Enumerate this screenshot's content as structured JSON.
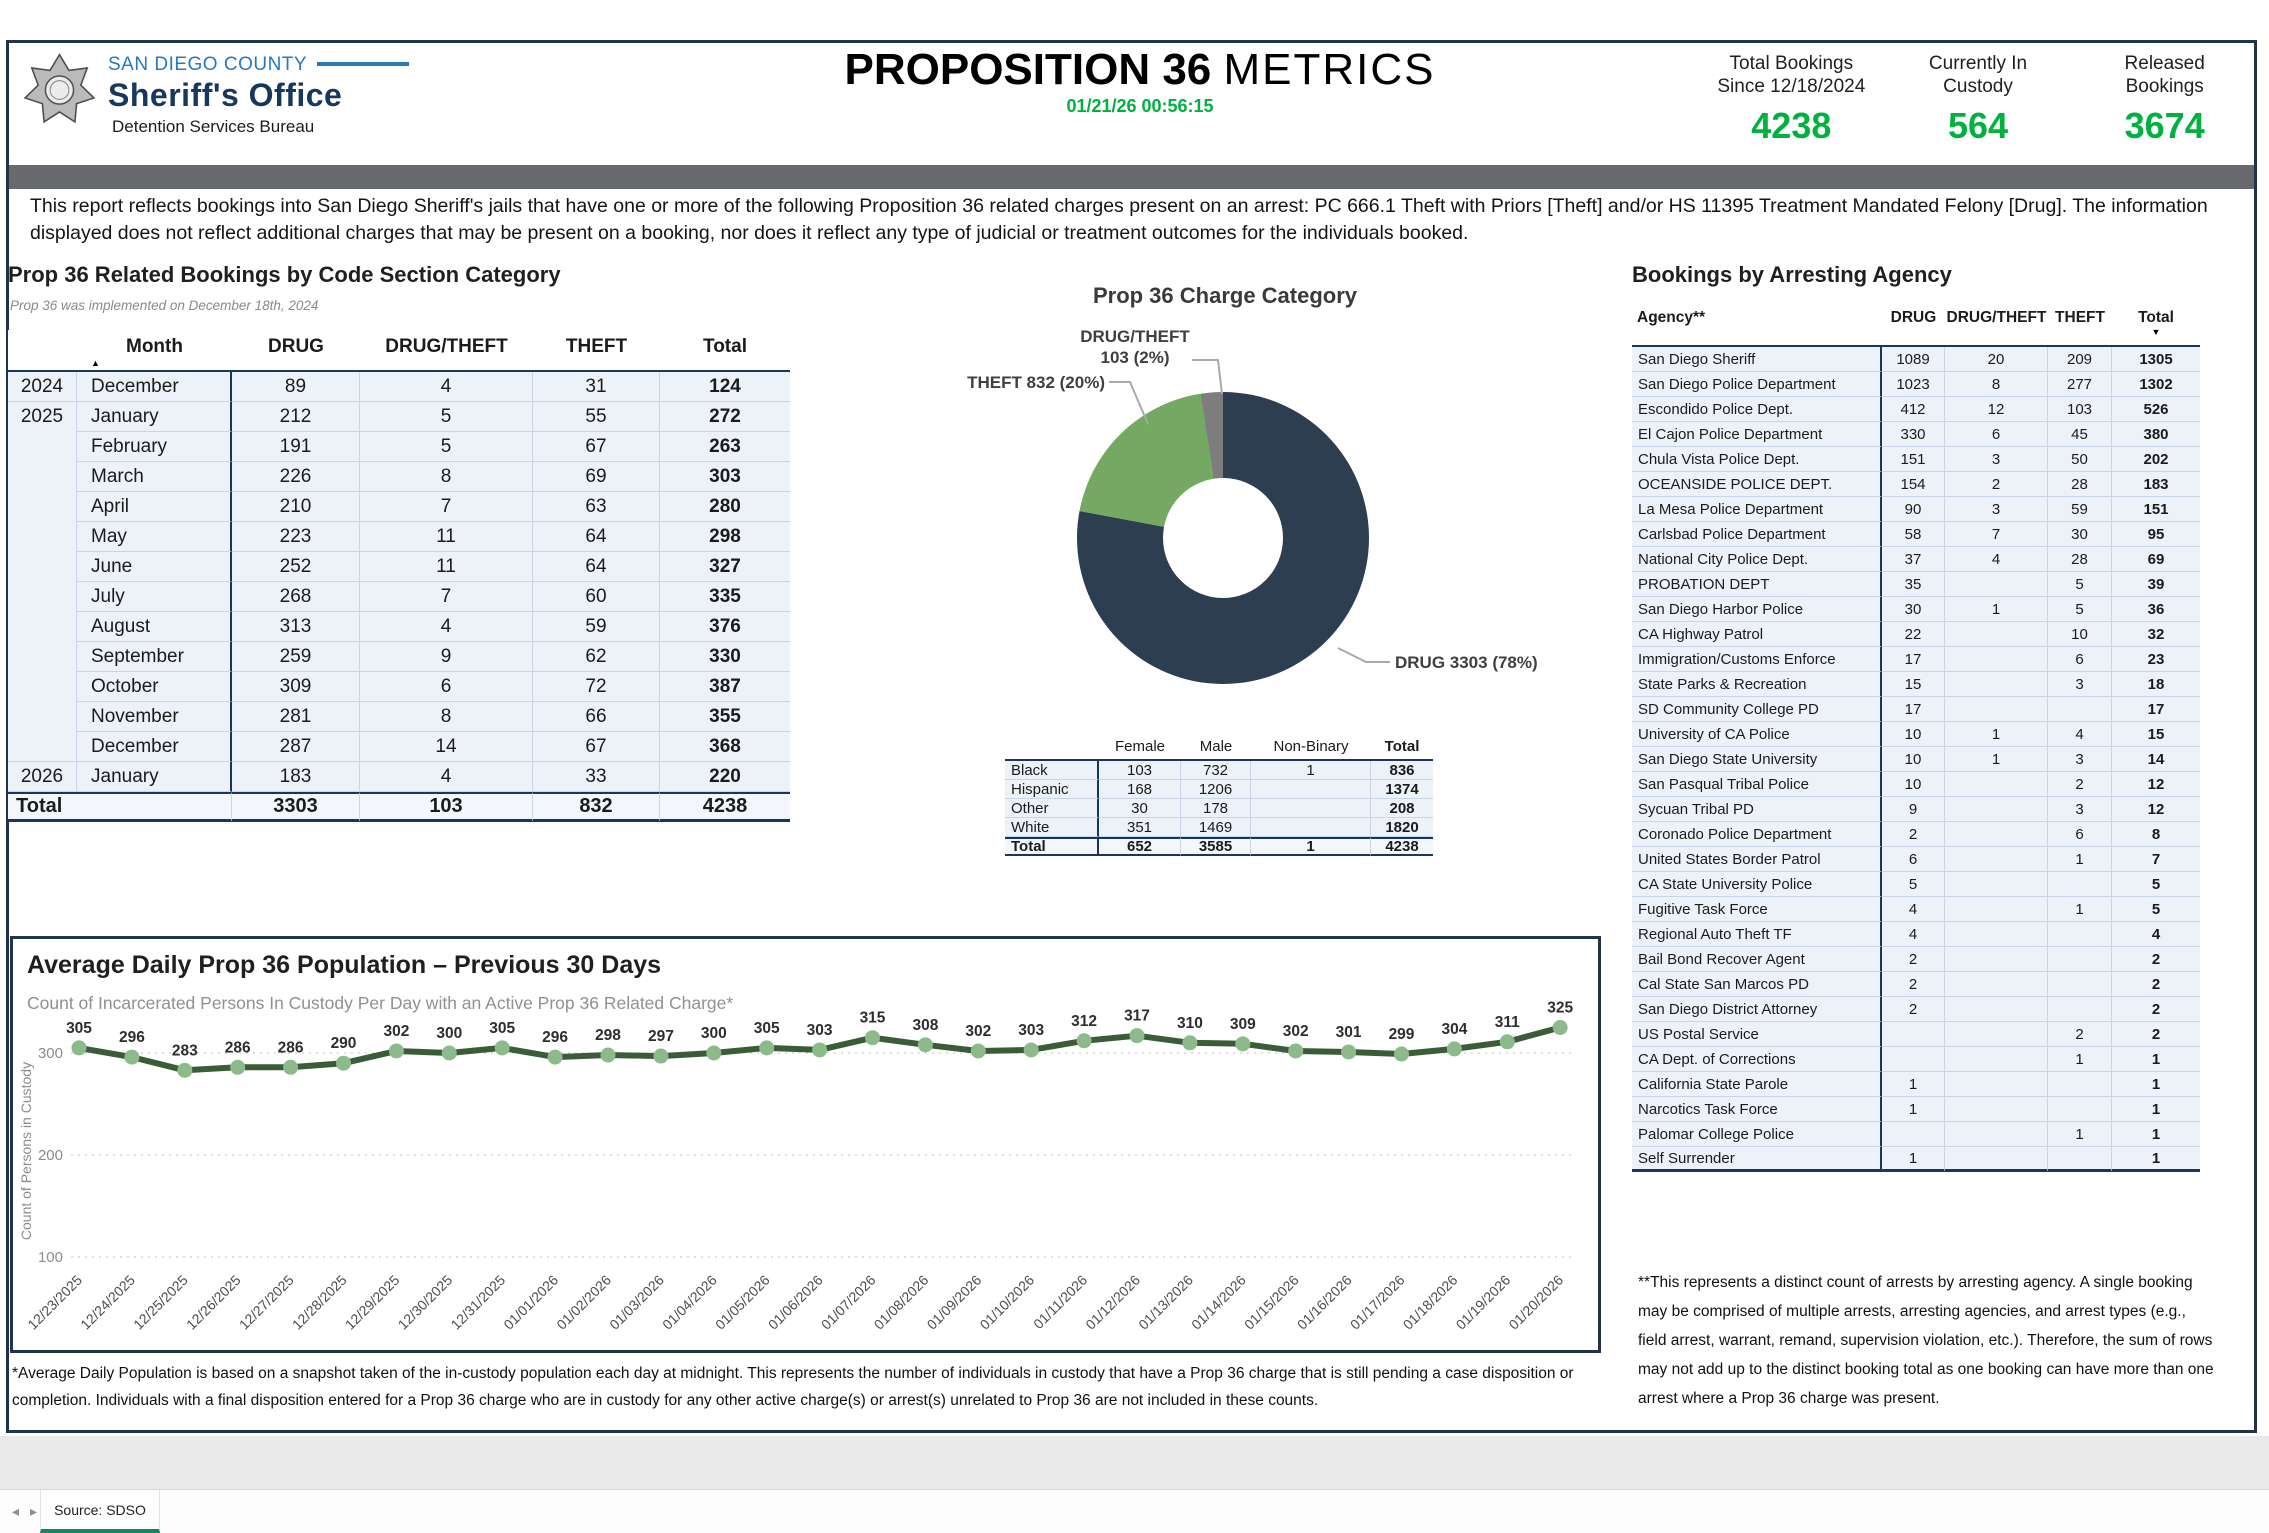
{
  "header": {
    "county": "SAN DIEGO COUNTY",
    "office": "Sheriff's Office",
    "bureau": "Detention Services Bureau",
    "title_bold": "PROPOSITION 36",
    "title_rest": "METRICS",
    "datetime": "01/21/26 00:56:15",
    "accent_green": "#00b140",
    "stats": [
      {
        "line1": "Total Bookings",
        "line2": "Since 12/18/2024",
        "value": "4238"
      },
      {
        "line1": "Currently In",
        "line2": "Custody",
        "value": "564"
      },
      {
        "line1": "Released",
        "line2": "Bookings",
        "value": "3674"
      }
    ]
  },
  "banner_text": "This report reflects bookings into San Diego Sheriff's jails that have one or more of the following Proposition 36 related charges present on an arrest: PC 666.1 Theft with Priors [Theft] and/or HS 11395 Treatment Mandated Felony [Drug]. The information displayed does not reflect additional charges that may be present on a booking, nor does it reflect any type of judicial or treatment outcomes for the individuals booked.",
  "sort_icons": {
    "asc": "▲",
    "desc": "▼"
  },
  "monthly_table": {
    "title": "Prop 36 Related Bookings by Code Section Category",
    "subtitle": "Prop 36 was implemented on December 18th, 2024",
    "columns": [
      "",
      "Month",
      "DRUG",
      "DRUG/THEFT",
      "THEFT",
      "Total"
    ],
    "rows": [
      [
        "2024",
        "December",
        "89",
        "4",
        "31",
        "124"
      ],
      [
        "2025",
        "January",
        "212",
        "5",
        "55",
        "272"
      ],
      [
        "",
        "February",
        "191",
        "5",
        "67",
        "263"
      ],
      [
        "",
        "March",
        "226",
        "8",
        "69",
        "303"
      ],
      [
        "",
        "April",
        "210",
        "7",
        "63",
        "280"
      ],
      [
        "",
        "May",
        "223",
        "11",
        "64",
        "298"
      ],
      [
        "",
        "June",
        "252",
        "11",
        "64",
        "327"
      ],
      [
        "",
        "July",
        "268",
        "7",
        "60",
        "335"
      ],
      [
        "",
        "August",
        "313",
        "4",
        "59",
        "376"
      ],
      [
        "",
        "September",
        "259",
        "9",
        "62",
        "330"
      ],
      [
        "",
        "October",
        "309",
        "6",
        "72",
        "387"
      ],
      [
        "",
        "November",
        "281",
        "8",
        "66",
        "355"
      ],
      [
        "",
        "December",
        "287",
        "14",
        "67",
        "368"
      ],
      [
        "2026",
        "January",
        "183",
        "4",
        "33",
        "220"
      ]
    ],
    "total_row": [
      "Total",
      "3303",
      "103",
      "832",
      "4238"
    ]
  },
  "demographics": {
    "columns": [
      "",
      "Female",
      "Male",
      "Non-Binary",
      "Total"
    ],
    "rows": [
      [
        "Black",
        "103",
        "732",
        "1",
        "836"
      ],
      [
        "Hispanic",
        "168",
        "1206",
        "",
        "1374"
      ],
      [
        "Other",
        "30",
        "178",
        "",
        "208"
      ],
      [
        "White",
        "351",
        "1469",
        "",
        "1820"
      ]
    ],
    "total_row": [
      "Total",
      "652",
      "3585",
      "1",
      "4238"
    ]
  },
  "agency_table": {
    "title": "Bookings by Arresting Agency",
    "columns": [
      "Agency**",
      "DRUG",
      "DRUG/THEFT",
      "THEFT",
      "Total"
    ],
    "rows": [
      [
        "San Diego Sheriff",
        "1089",
        "20",
        "209",
        "1305"
      ],
      [
        "San Diego Police Department",
        "1023",
        "8",
        "277",
        "1302"
      ],
      [
        "Escondido Police Dept.",
        "412",
        "12",
        "103",
        "526"
      ],
      [
        "El Cajon Police Department",
        "330",
        "6",
        "45",
        "380"
      ],
      [
        "Chula Vista Police Dept.",
        "151",
        "3",
        "50",
        "202"
      ],
      [
        "OCEANSIDE POLICE DEPT.",
        "154",
        "2",
        "28",
        "183"
      ],
      [
        "La Mesa Police Department",
        "90",
        "3",
        "59",
        "151"
      ],
      [
        "Carlsbad Police Department",
        "58",
        "7",
        "30",
        "95"
      ],
      [
        "National City Police Dept.",
        "37",
        "4",
        "28",
        "69"
      ],
      [
        "PROBATION DEPT",
        "35",
        "",
        "5",
        "39"
      ],
      [
        "San Diego Harbor Police",
        "30",
        "1",
        "5",
        "36"
      ],
      [
        "CA Highway Patrol",
        "22",
        "",
        "10",
        "32"
      ],
      [
        "Immigration/Customs Enforce",
        "17",
        "",
        "6",
        "23"
      ],
      [
        "State Parks & Recreation",
        "15",
        "",
        "3",
        "18"
      ],
      [
        "SD Community College PD",
        "17",
        "",
        "",
        "17"
      ],
      [
        "University of CA Police",
        "10",
        "1",
        "4",
        "15"
      ],
      [
        "San Diego State University",
        "10",
        "1",
        "3",
        "14"
      ],
      [
        "San Pasqual Tribal Police",
        "10",
        "",
        "2",
        "12"
      ],
      [
        "Sycuan Tribal PD",
        "9",
        "",
        "3",
        "12"
      ],
      [
        "Coronado Police Department",
        "2",
        "",
        "6",
        "8"
      ],
      [
        "United States Border Patrol",
        "6",
        "",
        "1",
        "7"
      ],
      [
        "CA State University Police",
        "5",
        "",
        "",
        "5"
      ],
      [
        "Fugitive Task Force",
        "4",
        "",
        "1",
        "5"
      ],
      [
        "Regional Auto Theft TF",
        "4",
        "",
        "",
        "4"
      ],
      [
        "Bail Bond Recover Agent",
        "2",
        "",
        "",
        "2"
      ],
      [
        "Cal State San Marcos PD",
        "2",
        "",
        "",
        "2"
      ],
      [
        "San Diego District Attorney",
        "2",
        "",
        "",
        "2"
      ],
      [
        "US Postal Service",
        "",
        "",
        "2",
        "2"
      ],
      [
        "CA Dept. of Corrections",
        "",
        "",
        "1",
        "1"
      ],
      [
        "California State Parole",
        "1",
        "",
        "",
        "1"
      ],
      [
        "Narcotics Task Force",
        "1",
        "",
        "",
        "1"
      ],
      [
        "Palomar College Police",
        "",
        "",
        "1",
        "1"
      ],
      [
        "Self Surrender",
        "1",
        "",
        "",
        "1"
      ]
    ]
  },
  "chart_data": [
    {
      "type": "pie",
      "donut": true,
      "title": "Prop 36 Charge Category",
      "labels": [
        "DRUG",
        "THEFT",
        "DRUG/THEFT"
      ],
      "values": [
        3303,
        832,
        103
      ],
      "percent_labels": [
        "78%",
        "20%",
        "2%"
      ],
      "colors": [
        "#2c3e50",
        "#74a863",
        "#7d7d7d"
      ],
      "annotations": {
        "drug": "DRUG 3303 (78%)",
        "theft": "THEFT 832 (20%)",
        "drug_theft_line1": "DRUG/THEFT",
        "drug_theft_line2": "103 (2%)"
      }
    },
    {
      "type": "line",
      "title": "Average Daily Prop 36 Population – Previous 30 Days",
      "subtitle": "Count of Incarcerated Persons In Custody Per Day with an Active Prop 36 Related Charge*",
      "ylabel": "Count of Persons in Custody",
      "yticks": [
        300,
        200,
        100
      ],
      "ylim": [
        80,
        345
      ],
      "grid": "dotted-horizontal",
      "legend": "none",
      "line_color": "#3b5c39",
      "marker_color": "#8cba8a",
      "x": [
        "12/23/2025",
        "12/24/2025",
        "12/25/2025",
        "12/26/2025",
        "12/27/2025",
        "12/28/2025",
        "12/29/2025",
        "12/30/2025",
        "12/31/2025",
        "01/01/2026",
        "01/02/2026",
        "01/03/2026",
        "01/04/2026",
        "01/05/2026",
        "01/06/2026",
        "01/07/2026",
        "01/08/2026",
        "01/09/2026",
        "01/10/2026",
        "01/11/2026",
        "01/12/2026",
        "01/13/2026",
        "01/14/2026",
        "01/15/2026",
        "01/16/2026",
        "01/17/2026",
        "01/18/2026",
        "01/19/2026",
        "01/20/2026"
      ],
      "values": [
        305,
        296,
        283,
        286,
        286,
        290,
        302,
        300,
        305,
        296,
        298,
        297,
        300,
        305,
        303,
        315,
        308,
        302,
        303,
        312,
        317,
        310,
        309,
        302,
        301,
        299,
        304,
        311,
        325
      ]
    }
  ],
  "footnotes": {
    "adp": "*Average Daily Population is based on a snapshot taken of the in-custody population each day at midnight. This represents the number of individuals in custody that have a Prop 36 charge that is still pending a case disposition or completion. Individuals with a final disposition entered for a Prop 36 charge who are in custody for any other active charge(s) or arrest(s) unrelated to Prop 36 are not included in these counts.",
    "agency": "**This represents a distinct count of arrests by arresting agency. A single booking may be comprised of multiple arrests, arresting agencies, and arrest types (e.g., field arrest, warrant, remand, supervision violation, etc.). Therefore, the sum of rows may not add up to the distinct booking total as one booking can have more than one arrest where a Prop 36 charge was present."
  },
  "pagination": {
    "prev_icon": "◂",
    "next_icon": "▸",
    "tab": "Source: SDSO",
    "tab_accent": "#17855f"
  }
}
